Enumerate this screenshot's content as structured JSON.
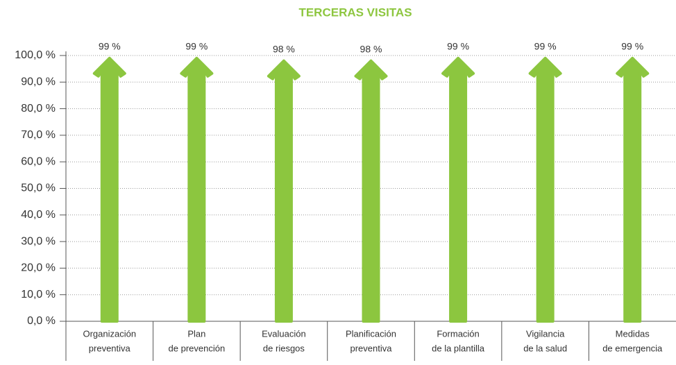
{
  "chart_data": {
    "type": "arrow-bar",
    "title": "TERCERAS VISITAS",
    "categories": [
      [
        "Organización",
        "preventiva"
      ],
      [
        "Plan",
        "de prevención"
      ],
      [
        "Evaluación",
        "de riesgos"
      ],
      [
        "Planificación",
        "preventiva"
      ],
      [
        "Formación",
        "de la plantilla"
      ],
      [
        "Vigilancia",
        "de la salud"
      ],
      [
        "Medidas",
        "de emergencia"
      ]
    ],
    "values": [
      99,
      99,
      98,
      98,
      99,
      99,
      99
    ],
    "value_labels": [
      "99 %",
      "99 %",
      "98 %",
      "98 %",
      "99 %",
      "99 %",
      "99 %"
    ],
    "color": "#8cc63f",
    "ylim": [
      0,
      100
    ],
    "yticks": [
      {
        "value": 0,
        "label": "0,0 %"
      },
      {
        "value": 10,
        "label": "10,0 %"
      },
      {
        "value": 20,
        "label": "20,0 %"
      },
      {
        "value": 30,
        "label": "30,0 %"
      },
      {
        "value": 40,
        "label": "40,0 %"
      },
      {
        "value": 50,
        "label": "50,0 %"
      },
      {
        "value": 60,
        "label": "60,0 %"
      },
      {
        "value": 70,
        "label": "70,0 %"
      },
      {
        "value": 80,
        "label": "80,0 %"
      },
      {
        "value": 90,
        "label": "90,0 %"
      },
      {
        "value": 100,
        "label": "100,0 %"
      }
    ],
    "grid": true
  }
}
